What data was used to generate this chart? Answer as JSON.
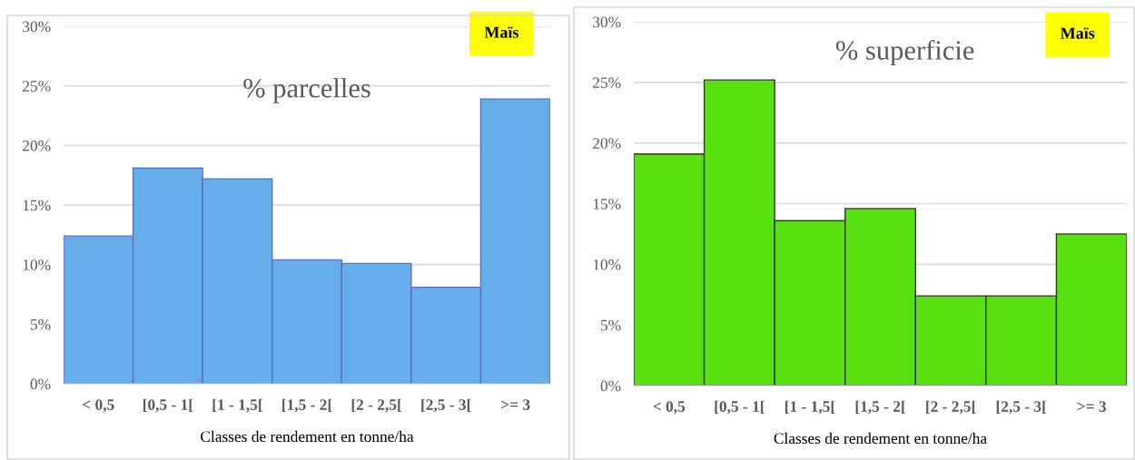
{
  "chart_data": [
    {
      "type": "bar",
      "title": "% parcelles",
      "xlabel": "Classes de rendement en tonne/ha",
      "annotations": [
        "Maïs"
      ],
      "categories": [
        "< 0,5",
        "[0,5 - 1[",
        "[1 - 1,5[",
        "[1,5 - 2[",
        "[2 - 2,5[",
        "[2,5 - 3[",
        ">= 3"
      ],
      "values": [
        12.4,
        18.1,
        17.2,
        10.4,
        10.1,
        8.1,
        23.9
      ],
      "color": "#66aeea",
      "ylim": [
        0,
        30
      ],
      "yticks": [
        {
          "value": 0,
          "label": "0%"
        },
        {
          "value": 5,
          "label": "5%"
        },
        {
          "value": 10,
          "label": "10%"
        },
        {
          "value": 15,
          "label": "15%"
        },
        {
          "value": 20,
          "label": "20%"
        },
        {
          "value": 25,
          "label": "25%"
        },
        {
          "value": 30,
          "label": "30%"
        }
      ],
      "grid": "y"
    },
    {
      "type": "bar",
      "title": "% superficie",
      "xlabel": "Classes de rendement en tonne/ha",
      "annotations": [
        "Maïs"
      ],
      "categories": [
        "< 0,5",
        "[0,5 - 1[",
        "[1 - 1,5[",
        "[1,5 - 2[",
        "[2 - 2,5[",
        "[2,5 - 3[",
        ">= 3"
      ],
      "values": [
        19.1,
        25.2,
        13.6,
        14.6,
        7.4,
        7.4,
        12.5
      ],
      "color": "#58e010",
      "ylim": [
        0,
        30
      ],
      "yticks": [
        {
          "value": 0,
          "label": "0%"
        },
        {
          "value": 5,
          "label": "5%"
        },
        {
          "value": 10,
          "label": "10%"
        },
        {
          "value": 15,
          "label": "15%"
        },
        {
          "value": 20,
          "label": "20%"
        },
        {
          "value": 25,
          "label": "25%"
        },
        {
          "value": 30,
          "label": "30%"
        }
      ],
      "grid": "y"
    }
  ]
}
